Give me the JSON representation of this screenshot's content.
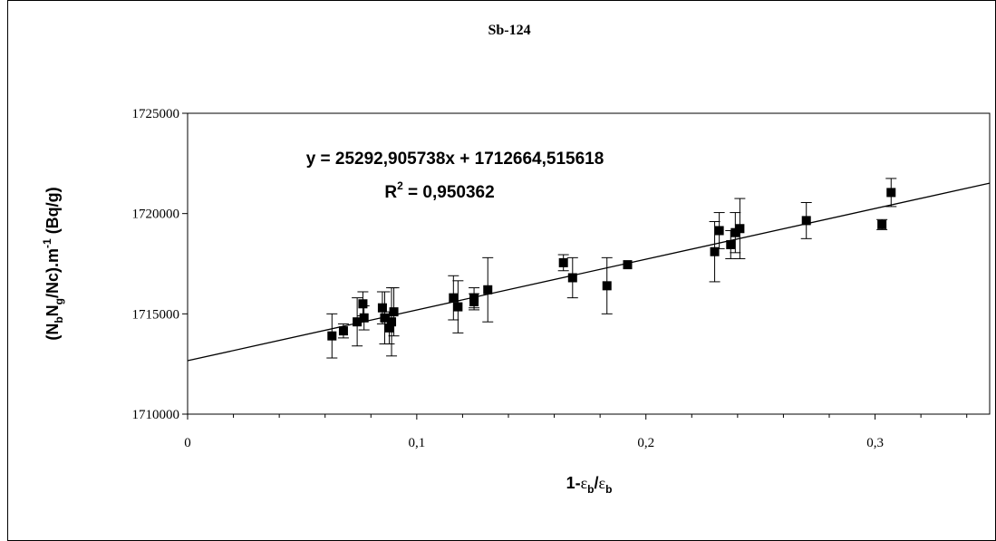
{
  "chart_data": {
    "type": "scatter",
    "title": "Sb-124",
    "xlabel": {
      "main": "1-",
      "eps1": "ε",
      "sub1": "b",
      "slash": "/",
      "eps2": "ε",
      "sub2": "b"
    },
    "ylabel": {
      "p1": "(N",
      "s1": "b",
      "p2": "N",
      "s2": "g",
      "p3": "/Nc).m",
      "sup": "-1",
      "p4": " (Bq/g)"
    },
    "xlim": [
      0,
      0.35
    ],
    "ylim": [
      1710000,
      1725000
    ],
    "x_ticks": [
      0,
      0.1,
      0.2,
      0.3
    ],
    "x_tick_labels": [
      "0",
      "0,1",
      "0,2",
      "0,3"
    ],
    "y_ticks": [
      1710000,
      1715000,
      1720000,
      1725000
    ],
    "y_tick_labels": [
      "1710000",
      "1715000",
      "1720000",
      "1725000"
    ],
    "grid": false,
    "trendline": {
      "slope": 25292.905738,
      "intercept": 1712664.515618
    },
    "equation_text": "y = 25292,905738x + 1712664,515618",
    "r2_text": {
      "label": "R",
      "sup": "2",
      "value": " = 0,950362"
    },
    "points": [
      {
        "x": 0.063,
        "y": 1713900,
        "err": 1100
      },
      {
        "x": 0.068,
        "y": 1714150,
        "err": 350
      },
      {
        "x": 0.074,
        "y": 1714600,
        "err": 1200
      },
      {
        "x": 0.0765,
        "y": 1715500,
        "err": 600
      },
      {
        "x": 0.077,
        "y": 1714800,
        "err": 600
      },
      {
        "x": 0.085,
        "y": 1715300,
        "err": 800
      },
      {
        "x": 0.086,
        "y": 1714800,
        "err": 1300
      },
      {
        "x": 0.088,
        "y": 1714300,
        "err": 800
      },
      {
        "x": 0.089,
        "y": 1714600,
        "err": 1700
      },
      {
        "x": 0.09,
        "y": 1715100,
        "err": 1200
      },
      {
        "x": 0.116,
        "y": 1715800,
        "err": 1100
      },
      {
        "x": 0.118,
        "y": 1715350,
        "err": 1300
      },
      {
        "x": 0.125,
        "y": 1715800,
        "err": 500
      },
      {
        "x": 0.125,
        "y": 1715600,
        "err": 400
      },
      {
        "x": 0.131,
        "y": 1716200,
        "err": 1600
      },
      {
        "x": 0.164,
        "y": 1717550,
        "err": 400
      },
      {
        "x": 0.168,
        "y": 1716800,
        "err": 1000
      },
      {
        "x": 0.183,
        "y": 1716400,
        "err": 1400
      },
      {
        "x": 0.192,
        "y": 1717450,
        "err": 0
      },
      {
        "x": 0.23,
        "y": 1718100,
        "err": 1500
      },
      {
        "x": 0.232,
        "y": 1719150,
        "err": 900
      },
      {
        "x": 0.237,
        "y": 1718450,
        "err": 700
      },
      {
        "x": 0.239,
        "y": 1719050,
        "err": 1000
      },
      {
        "x": 0.241,
        "y": 1719250,
        "err": 1500
      },
      {
        "x": 0.27,
        "y": 1719650,
        "err": 900
      },
      {
        "x": 0.303,
        "y": 1719450,
        "err": 250
      },
      {
        "x": 0.307,
        "y": 1721050,
        "err": 700
      }
    ]
  }
}
